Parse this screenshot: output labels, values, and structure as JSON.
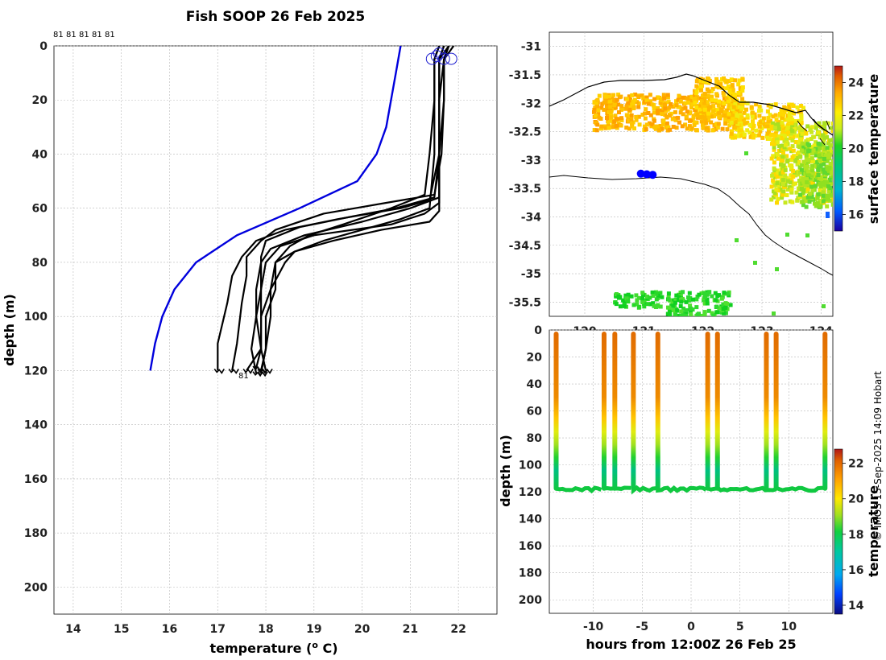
{
  "credit": "© IMOS 15-Sep-2025 14:09 Hobart",
  "chart_data": [
    {
      "id": "profiles",
      "type": "line",
      "title": "Fish SOOP 26 Feb 2025",
      "xlabel": "temperature (o C)",
      "xlabel_main": "temperature (",
      "xlabel_sup": "o",
      "xlabel_end": " C)",
      "ylabel": "depth (m)",
      "xlim": [
        13.6,
        22.8
      ],
      "ylim": [
        210,
        0
      ],
      "xticks": [
        14,
        15,
        16,
        17,
        18,
        19,
        20,
        21,
        22
      ],
      "yticks": [
        0,
        20,
        40,
        60,
        80,
        100,
        120,
        140,
        160,
        180,
        200
      ],
      "grid": true,
      "top_labels": [
        "81",
        "81",
        "81",
        "81",
        "81"
      ],
      "bottom_label": "81",
      "climatology": {
        "color": "#0000dd",
        "depth": [
          0,
          10,
          20,
          30,
          40,
          50,
          60,
          70,
          80,
          90,
          100,
          110,
          120
        ],
        "temperature": [
          20.8,
          20.7,
          20.6,
          20.5,
          20.3,
          19.9,
          18.7,
          17.4,
          16.55,
          16.1,
          15.85,
          15.7,
          15.6
        ]
      },
      "profile_color": "#000000",
      "profiles": [
        {
          "depth": [
            0,
            5,
            20,
            40,
            55,
            58,
            62,
            68,
            72,
            78,
            85,
            95,
            110,
            120
          ],
          "temperature": [
            21.8,
            21.7,
            21.7,
            21.65,
            21.5,
            20.5,
            19.2,
            18.2,
            17.9,
            17.6,
            17.6,
            17.5,
            17.4,
            17.3
          ]
        },
        {
          "depth": [
            0,
            5,
            20,
            40,
            57,
            60,
            64,
            68,
            72,
            78,
            85,
            95,
            110,
            120
          ],
          "temperature": [
            21.7,
            21.6,
            21.6,
            21.6,
            21.4,
            20.8,
            19.5,
            18.4,
            17.8,
            17.5,
            17.3,
            17.2,
            17.0,
            17.0
          ]
        },
        {
          "depth": [
            0,
            5,
            20,
            40,
            56,
            60,
            65,
            70,
            75,
            80,
            90,
            100,
            112,
            120
          ],
          "temperature": [
            21.8,
            21.6,
            21.6,
            21.6,
            21.6,
            21.0,
            20.0,
            18.8,
            18.1,
            17.9,
            17.8,
            17.8,
            17.9,
            18.0
          ]
        },
        {
          "depth": [
            0,
            5,
            20,
            40,
            55,
            60,
            66,
            70,
            74,
            80,
            90,
            100,
            112,
            121
          ],
          "temperature": [
            21.6,
            21.5,
            21.5,
            21.4,
            21.3,
            20.6,
            19.6,
            18.9,
            18.5,
            18.2,
            18.2,
            18.0,
            18.0,
            17.9
          ]
        },
        {
          "depth": [
            0,
            5,
            20,
            40,
            58,
            62,
            66,
            70,
            74,
            80,
            90,
            100,
            112,
            121
          ],
          "temperature": [
            21.9,
            21.7,
            21.7,
            21.6,
            21.6,
            21.3,
            20.6,
            19.0,
            18.3,
            18.0,
            17.9,
            17.8,
            17.7,
            17.8
          ]
        },
        {
          "depth": [
            0,
            5,
            20,
            40,
            60,
            64,
            68,
            72,
            76,
            80,
            90,
            100,
            112,
            120
          ],
          "temperature": [
            21.6,
            21.5,
            21.5,
            21.5,
            21.4,
            20.8,
            20.0,
            19.2,
            18.6,
            18.4,
            18.1,
            17.9,
            17.9,
            17.6
          ]
        },
        {
          "depth": [
            0,
            5,
            20,
            40,
            56,
            60,
            63,
            67,
            72,
            78,
            88,
            100,
            112,
            119
          ],
          "temperature": [
            21.7,
            21.6,
            21.6,
            21.6,
            21.5,
            20.7,
            19.8,
            18.7,
            18.0,
            17.9,
            17.9,
            17.9,
            17.9,
            17.8
          ]
        },
        {
          "depth": [
            0,
            5,
            20,
            40,
            61,
            65,
            68,
            72,
            76,
            80,
            90,
            100,
            112,
            120
          ],
          "temperature": [
            21.8,
            21.7,
            21.6,
            21.6,
            21.6,
            21.4,
            20.4,
            19.4,
            18.6,
            18.2,
            18.1,
            18.1,
            18.0,
            17.9
          ]
        }
      ]
    },
    {
      "id": "map",
      "type": "heatmap",
      "xlim": [
        119.4,
        124.2
      ],
      "ylim": [
        -35.75,
        -30.75
      ],
      "xticks": [
        120,
        121,
        122,
        123,
        124
      ],
      "yticks": [
        -31,
        -31.5,
        -32,
        -32.5,
        -33,
        -33.5,
        -34,
        -34.5,
        -35,
        -35.5
      ],
      "grid": true,
      "colorbar": {
        "label": "surface temperature",
        "range": [
          15,
          25
        ],
        "ticks": [
          16,
          18,
          20,
          22,
          24
        ]
      },
      "track_points": [
        [
          120.95,
          -33.24
        ],
        [
          121.05,
          -33.25
        ],
        [
          121.15,
          -33.26
        ]
      ],
      "track_color": "#0000ff"
    },
    {
      "id": "section",
      "type": "scatter",
      "xlabel": "hours from 12:00Z 26 Feb 25",
      "ylabel": "depth (m)",
      "xlim": [
        -14.5,
        14.5
      ],
      "ylim": [
        210,
        0
      ],
      "xticks": [
        -10,
        -5,
        0,
        5,
        10
      ],
      "yticks": [
        0,
        20,
        40,
        60,
        80,
        100,
        120,
        140,
        160,
        180,
        200
      ],
      "grid": true,
      "colorbar": {
        "label": "temperature",
        "range": [
          13.5,
          22.8
        ],
        "ticks": [
          14,
          16,
          18,
          20,
          22
        ]
      },
      "casts_hours": [
        -13.8,
        -8.9,
        -7.8,
        -5.9,
        -3.4,
        1.7,
        2.7,
        7.7,
        8.7,
        13.7
      ],
      "floor_depth": 118
    }
  ]
}
